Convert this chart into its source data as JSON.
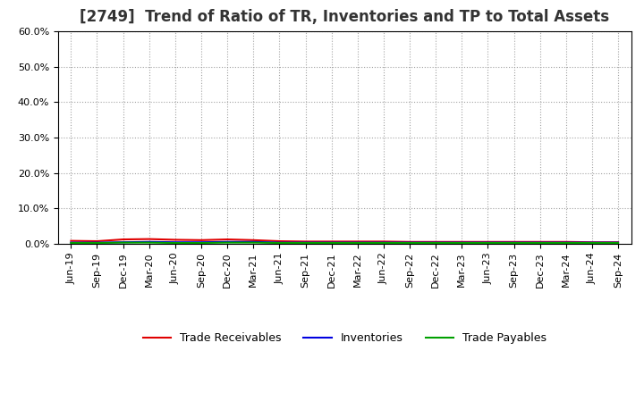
{
  "title": "[2749]  Trend of Ratio of TR, Inventories and TP to Total Assets",
  "x_labels": [
    "Jun-19",
    "Sep-19",
    "Dec-19",
    "Mar-20",
    "Jun-20",
    "Sep-20",
    "Dec-20",
    "Mar-21",
    "Jun-21",
    "Sep-21",
    "Dec-21",
    "Mar-22",
    "Jun-22",
    "Sep-22",
    "Dec-22",
    "Mar-23",
    "Jun-23",
    "Sep-23",
    "Dec-23",
    "Mar-24",
    "Jun-24",
    "Sep-24"
  ],
  "trade_receivables": [
    0.008,
    0.007,
    0.012,
    0.013,
    0.011,
    0.01,
    0.012,
    0.01,
    0.007,
    0.006,
    0.006,
    0.006,
    0.006,
    0.005,
    0.005,
    0.005,
    0.005,
    0.005,
    0.005,
    0.005,
    0.004,
    0.004
  ],
  "inventories": [
    0.003,
    0.003,
    0.004,
    0.005,
    0.004,
    0.004,
    0.005,
    0.005,
    0.003,
    0.003,
    0.003,
    0.003,
    0.003,
    0.003,
    0.003,
    0.003,
    0.003,
    0.003,
    0.003,
    0.003,
    0.003,
    0.003
  ],
  "trade_payables": [
    0.002,
    0.002,
    0.003,
    0.003,
    0.002,
    0.002,
    0.003,
    0.003,
    0.002,
    0.002,
    0.002,
    0.002,
    0.002,
    0.002,
    0.002,
    0.002,
    0.002,
    0.002,
    0.002,
    0.002,
    0.002,
    0.002
  ],
  "tr_color": "#e00000",
  "inv_color": "#0000e0",
  "tp_color": "#00a000",
  "ylim": [
    0.0,
    0.6
  ],
  "yticks": [
    0.0,
    0.1,
    0.2,
    0.3,
    0.4,
    0.5,
    0.6
  ],
  "ytick_labels": [
    "0.0%",
    "10.0%",
    "20.0%",
    "30.0%",
    "40.0%",
    "50.0%",
    "60.0%"
  ],
  "background_color": "#ffffff",
  "plot_bg_color": "#ffffff",
  "grid_color": "#999999",
  "legend_labels": [
    "Trade Receivables",
    "Inventories",
    "Trade Payables"
  ],
  "title_fontsize": 12,
  "tick_fontsize": 8,
  "legend_fontsize": 9
}
